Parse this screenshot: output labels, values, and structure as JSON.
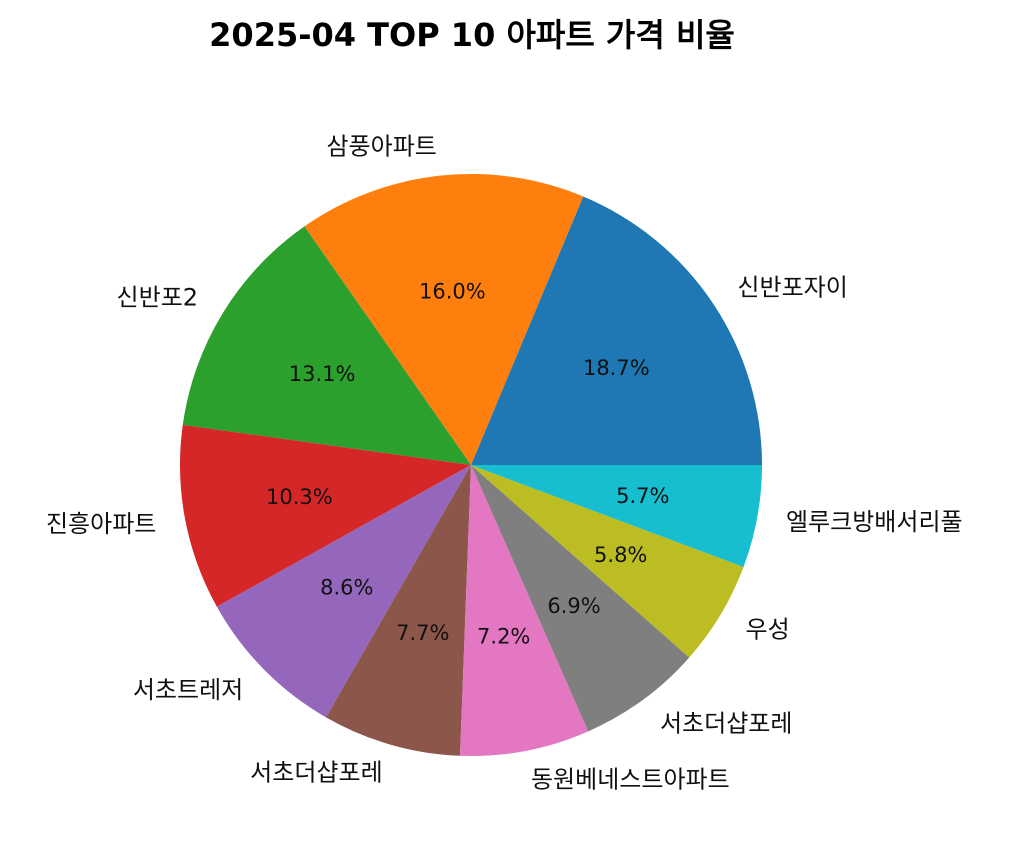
{
  "chart_data": {
    "type": "pie",
    "title": "2025-04 TOP 10 아파트 가격 비율",
    "start_angle_deg": 0,
    "direction": "counterclockwise",
    "categories": [
      "신반포자이",
      "삼풍아파트",
      "신반포2",
      "진흥아파트",
      "서초트레저",
      "서초더샵포레",
      "동원베네스트아파트",
      "서초더샵포레",
      "우성",
      "엘루크방배서리풀"
    ],
    "values": [
      18.7,
      16.0,
      13.1,
      10.3,
      8.6,
      7.7,
      7.2,
      6.9,
      5.8,
      5.7
    ],
    "value_labels": [
      "18.7%",
      "16.0%",
      "13.1%",
      "10.3%",
      "8.6%",
      "7.7%",
      "7.2%",
      "6.9%",
      "5.8%",
      "5.7%"
    ],
    "colors": [
      "#1f77b4",
      "#ff7f0e",
      "#2ca02c",
      "#d62728",
      "#9467bd",
      "#8c564b",
      "#e377c2",
      "#7f7f7f",
      "#bcbd22",
      "#17becf"
    ]
  }
}
